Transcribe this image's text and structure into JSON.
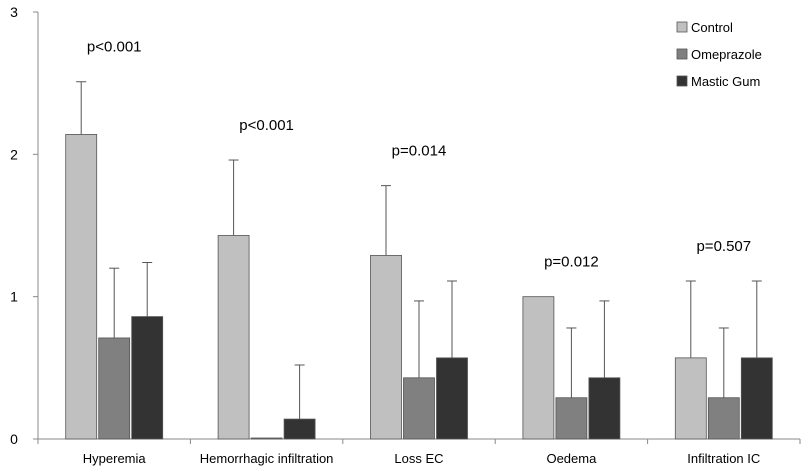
{
  "chart_data": {
    "type": "bar",
    "title": "",
    "xlabel": "",
    "ylabel": "",
    "ylim": [
      0,
      3
    ],
    "yticks": [
      0,
      1,
      2,
      3
    ],
    "grid": false,
    "legend_position": "top-right",
    "categories": [
      "Hyperemia",
      "Hemorrhagic infiltration",
      "Loss EC",
      "Oedema",
      "Infiltration IC"
    ],
    "series": [
      {
        "name": "Control",
        "color": "#c0c0c0",
        "values": [
          2.14,
          1.43,
          1.29,
          1.0,
          0.57
        ],
        "error": [
          0.37,
          0.53,
          0.49,
          0.0,
          0.54
        ]
      },
      {
        "name": "Omeprazole",
        "color": "#808080",
        "values": [
          0.71,
          0.0,
          0.43,
          0.29,
          0.29
        ],
        "error": [
          0.49,
          0.0,
          0.54,
          0.49,
          0.49
        ]
      },
      {
        "name": "Mastic Gum",
        "color": "#333333",
        "values": [
          0.86,
          0.14,
          0.57,
          0.43,
          0.57
        ],
        "error": [
          0.38,
          0.38,
          0.54,
          0.54,
          0.54
        ]
      }
    ],
    "annotations": [
      "p<0.001",
      "p<0.001",
      "p=0.014",
      "p=0.012",
      "p=0.507"
    ]
  }
}
